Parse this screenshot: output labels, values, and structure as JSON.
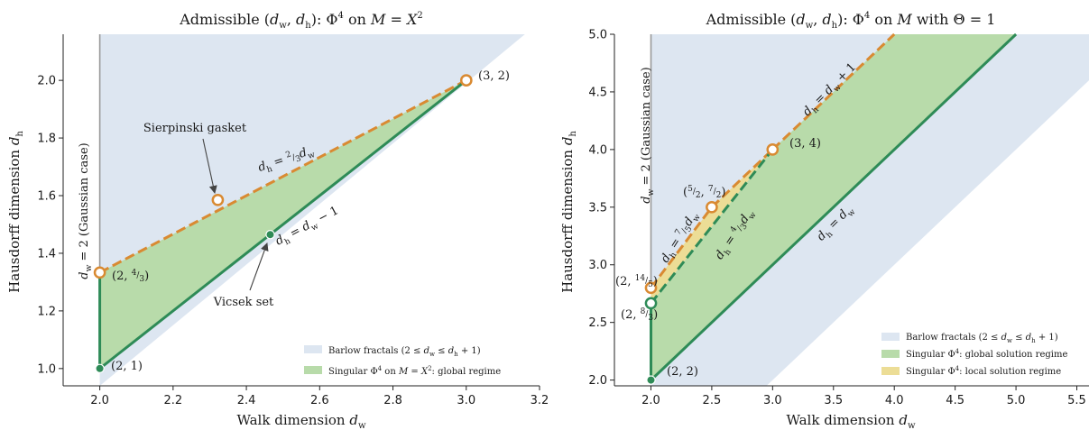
{
  "figure": {
    "colors": {
      "barlow": "#dde6f1",
      "global": "#b8dbaa",
      "local": "#ecdd96",
      "green_line": "#2e8b57",
      "orange_line": "#d98a32",
      "gray_line": "#999999"
    }
  },
  "chart_data": [
    {
      "type": "area",
      "title": "Admissible (d_w, d_h): Φ⁴ on M = X²",
      "xlabel": "Walk dimension d_w",
      "ylabel": "Hausdorff dimension d_h",
      "xlim": [
        1.9,
        3.2
      ],
      "ylim": [
        0.94,
        2.16
      ],
      "xticks": [
        "2.0",
        "2.2",
        "2.4",
        "2.6",
        "2.8",
        "3.0",
        "3.2"
      ],
      "yticks": [
        "1.0",
        "1.2",
        "1.4",
        "1.6",
        "1.8",
        "2.0"
      ],
      "regions": [
        {
          "name": "Barlow fractals (2 ≤ d_w ≤ d_h + 1)",
          "polygon": [
            [
              2.0,
              0.94
            ],
            [
              2.0,
              2.16
            ],
            [
              3.16,
              2.16
            ]
          ]
        },
        {
          "name": "Singular Φ⁴ on M = X²: global regime",
          "polygon": [
            [
              2.0,
              1.0
            ],
            [
              2.0,
              1.3333
            ],
            [
              3.0,
              2.0
            ]
          ]
        }
      ],
      "lines": [
        {
          "name": "d_h = (2/3) d_w",
          "style": "dashed",
          "color": "orange",
          "x": [
            2.0,
            3.0
          ],
          "y": [
            1.3333,
            2.0
          ]
        },
        {
          "name": "d_h = d_w − 1",
          "style": "solid",
          "color": "green",
          "x": [
            2.0,
            3.0
          ],
          "y": [
            1.0,
            2.0
          ]
        },
        {
          "name": "d_w = 2 boundary",
          "style": "solid",
          "color": "green",
          "x": [
            2.0,
            2.0
          ],
          "y": [
            1.0,
            1.3333
          ]
        },
        {
          "name": "d_w = 2",
          "style": "solid",
          "color": "gray",
          "x": [
            2.0,
            2.0
          ],
          "y": [
            1.3333,
            2.16
          ]
        }
      ],
      "points": [
        {
          "x": 2.0,
          "y": 1.0,
          "marker": "filled",
          "color": "green",
          "label": "(2, 1)"
        },
        {
          "x": 2.0,
          "y": 1.3333,
          "marker": "open",
          "color": "orange",
          "label": "(2, 4/3)"
        },
        {
          "x": 3.0,
          "y": 2.0,
          "marker": "open",
          "color": "orange",
          "label": "(3, 2)"
        },
        {
          "x": 2.3219,
          "y": 1.585,
          "marker": "open",
          "color": "orange",
          "label": ""
        },
        {
          "x": 2.465,
          "y": 1.465,
          "marker": "filled",
          "color": "green",
          "label": ""
        }
      ],
      "annotations": [
        {
          "text": "Sierpinski gasket",
          "arrow_to": [
            2.3219,
            1.585
          ]
        },
        {
          "text": "Vicsek set",
          "arrow_to": [
            2.465,
            1.465
          ]
        },
        {
          "text": "d_w = 2 (Gaussian case)"
        },
        {
          "text": "d_h = 2/3 d_w"
        },
        {
          "text": "d_h = d_w − 1"
        }
      ],
      "legend": {
        "position": "lower-right",
        "entries": [
          "Barlow fractals (2 ≤ d_w ≤ d_h + 1)",
          "Singular Φ⁴ on M = X²: global regime"
        ]
      }
    },
    {
      "type": "area",
      "title": "Admissible (d_w, d_h): Φ⁴ on M with Θ = 1",
      "xlabel": "Walk dimension d_w",
      "ylabel": "Hausdorff dimension d_h",
      "xlim": [
        1.7,
        5.6
      ],
      "ylim": [
        1.95,
        5.0
      ],
      "xticks": [
        "2.0",
        "2.5",
        "3.0",
        "3.5",
        "4.0",
        "4.5",
        "5.0",
        "5.5"
      ],
      "yticks": [
        "2.0",
        "2.5",
        "3.0",
        "3.5",
        "4.0",
        "4.5",
        "5.0"
      ],
      "regions": [
        {
          "name": "Barlow fractals (2 ≤ d_w ≤ d_h + 1)",
          "polygon": [
            [
              2.0,
              1.95
            ],
            [
              2.0,
              5.0
            ],
            [
              5.6,
              5.0
            ],
            [
              5.6,
              4.6
            ],
            [
              2.95,
              1.95
            ]
          ]
        },
        {
          "name": "Singular Φ⁴: global solution regime",
          "polygon": [
            [
              2.0,
              2.0
            ],
            [
              2.0,
              2.6667
            ],
            [
              2.25,
              3.0
            ],
            [
              3.0,
              4.0
            ],
            [
              4.0,
              5.0
            ],
            [
              5.0,
              5.0
            ]
          ]
        },
        {
          "name": "Singular Φ⁴: local solution regime",
          "polygon": [
            [
              2.0,
              2.6667
            ],
            [
              2.0,
              2.8
            ],
            [
              2.5,
              3.5
            ],
            [
              3.0,
              4.0
            ]
          ]
        }
      ],
      "lines": [
        {
          "name": "d_h = d_w + 1",
          "style": "dashed",
          "color": "orange",
          "x": [
            3.0,
            4.0
          ],
          "y": [
            4.0,
            5.0
          ]
        },
        {
          "name": "d_h = (7/5) d_w",
          "style": "dashed",
          "color": "orange",
          "x": [
            2.0,
            2.5
          ],
          "y": [
            2.8,
            3.5
          ]
        },
        {
          "name": "upper local",
          "style": "dashed",
          "color": "orange",
          "x": [
            2.5,
            3.0
          ],
          "y": [
            3.5,
            4.0
          ]
        },
        {
          "name": "d_h = (4/3) d_w",
          "style": "dashed",
          "color": "green",
          "x": [
            2.0,
            3.0
          ],
          "y": [
            2.6667,
            4.0
          ]
        },
        {
          "name": "d_h = d_w",
          "style": "solid",
          "color": "green",
          "x": [
            2.0,
            5.0
          ],
          "y": [
            2.0,
            5.0
          ]
        },
        {
          "name": "d_w = 2 boundary",
          "style": "solid",
          "color": "green",
          "x": [
            2.0,
            2.0
          ],
          "y": [
            2.0,
            2.6667
          ]
        },
        {
          "name": "d_w = 2",
          "style": "solid",
          "color": "gray",
          "x": [
            2.0,
            2.0
          ],
          "y": [
            2.8,
            5.0
          ]
        }
      ],
      "points": [
        {
          "x": 2.0,
          "y": 2.0,
          "marker": "filled",
          "color": "green",
          "label": "(2, 2)"
        },
        {
          "x": 2.0,
          "y": 2.6667,
          "marker": "open",
          "color": "green",
          "label": "(2, 8/3)"
        },
        {
          "x": 2.0,
          "y": 2.8,
          "marker": "open",
          "color": "orange",
          "label": "(2, 14/5)"
        },
        {
          "x": 2.5,
          "y": 3.5,
          "marker": "open",
          "color": "orange",
          "label": "(5/2, 7/2)"
        },
        {
          "x": 3.0,
          "y": 4.0,
          "marker": "open",
          "color": "orange",
          "label": "(3, 4)"
        }
      ],
      "annotations": [
        {
          "text": "d_w = 2 (Gaussian case)"
        },
        {
          "text": "d_h = d_w + 1"
        },
        {
          "text": "d_h = 7/5 d_w"
        },
        {
          "text": "d_h = 4/3 d_w"
        },
        {
          "text": "d_h = d_w"
        }
      ],
      "legend": {
        "position": "lower-right",
        "entries": [
          "Barlow fractals (2 ≤ d_w ≤ d_h + 1)",
          "Singular Φ⁴: global solution regime",
          "Singular Φ⁴: local solution regime"
        ]
      }
    }
  ]
}
